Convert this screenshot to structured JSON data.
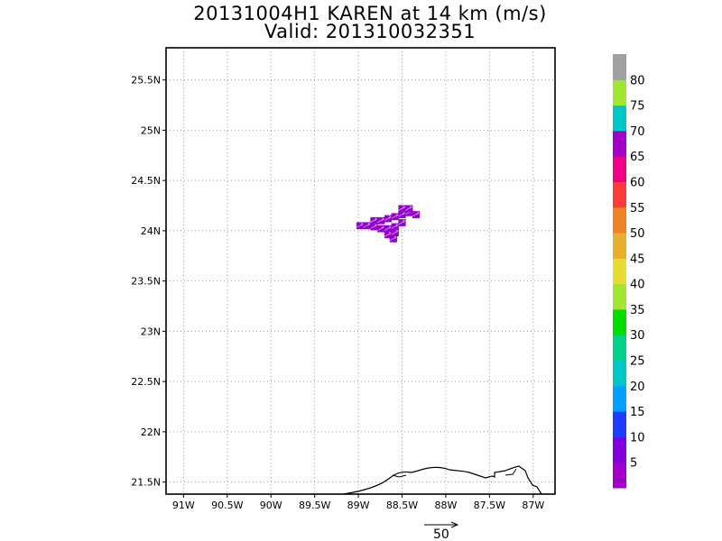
{
  "title_line1": "20131004H1 KAREN at 14 km (m/s)",
  "title_line2": "Valid: 201310032351",
  "chart_data": {
    "type": "heatmap",
    "title": "20131004H1 KAREN at 14 km (m/s)",
    "subtitle": "Valid: 201310032351",
    "xlabel": "",
    "ylabel": "",
    "x_ticks": [
      "91W",
      "90.5W",
      "90W",
      "89.5W",
      "89W",
      "88.5W",
      "88W",
      "87.5W",
      "87W"
    ],
    "y_ticks": [
      "25.5N",
      "25N",
      "24.5N",
      "24N",
      "23.5N",
      "23N",
      "22.5N",
      "22N",
      "21.5N"
    ],
    "xlim": [
      -91.2,
      -86.75
    ],
    "ylim": [
      21.38,
      25.82
    ],
    "grid": true,
    "colorbar": {
      "labels": [
        "5",
        "10",
        "15",
        "20",
        "25",
        "30",
        "35",
        "40",
        "45",
        "50",
        "55",
        "60",
        "65",
        "70",
        "75",
        "80"
      ],
      "colors": [
        "#a000c8",
        "#8200dc",
        "#1e3cff",
        "#00a0ff",
        "#00c8c8",
        "#00d28c",
        "#00dc00",
        "#a0e632",
        "#e6dc32",
        "#e6af2d",
        "#f08228",
        "#fa3c3c",
        "#f00082",
        "#a000c8",
        "#00c8c8",
        "#a0e632",
        "#a0a0a0"
      ]
    },
    "cells": [
      {
        "lon": -88.98,
        "lat": 24.05,
        "value": 3
      },
      {
        "lon": -88.9,
        "lat": 24.05,
        "value": 3
      },
      {
        "lon": -88.82,
        "lat": 24.1,
        "value": 3
      },
      {
        "lon": -88.74,
        "lat": 24.1,
        "value": 3
      },
      {
        "lon": -88.66,
        "lat": 24.12,
        "value": 3
      },
      {
        "lon": -88.58,
        "lat": 24.14,
        "value": 3
      },
      {
        "lon": -88.5,
        "lat": 24.16,
        "value": 3
      },
      {
        "lon": -88.42,
        "lat": 24.18,
        "value": 3
      },
      {
        "lon": -88.34,
        "lat": 24.16,
        "value": 3
      },
      {
        "lon": -88.5,
        "lat": 24.22,
        "value": 3
      },
      {
        "lon": -88.42,
        "lat": 24.22,
        "value": 3
      },
      {
        "lon": -88.74,
        "lat": 24.02,
        "value": 3
      },
      {
        "lon": -88.66,
        "lat": 24.02,
        "value": 3
      },
      {
        "lon": -88.58,
        "lat": 24.04,
        "value": 3
      },
      {
        "lon": -88.5,
        "lat": 24.08,
        "value": 3
      },
      {
        "lon": -88.66,
        "lat": 23.96,
        "value": 3
      },
      {
        "lon": -88.6,
        "lat": 23.92,
        "value": 3
      },
      {
        "lon": -88.82,
        "lat": 24.04,
        "value": 3
      },
      {
        "lon": -88.58,
        "lat": 23.98,
        "value": 3
      }
    ],
    "vector_scale": {
      "label": "50"
    }
  }
}
